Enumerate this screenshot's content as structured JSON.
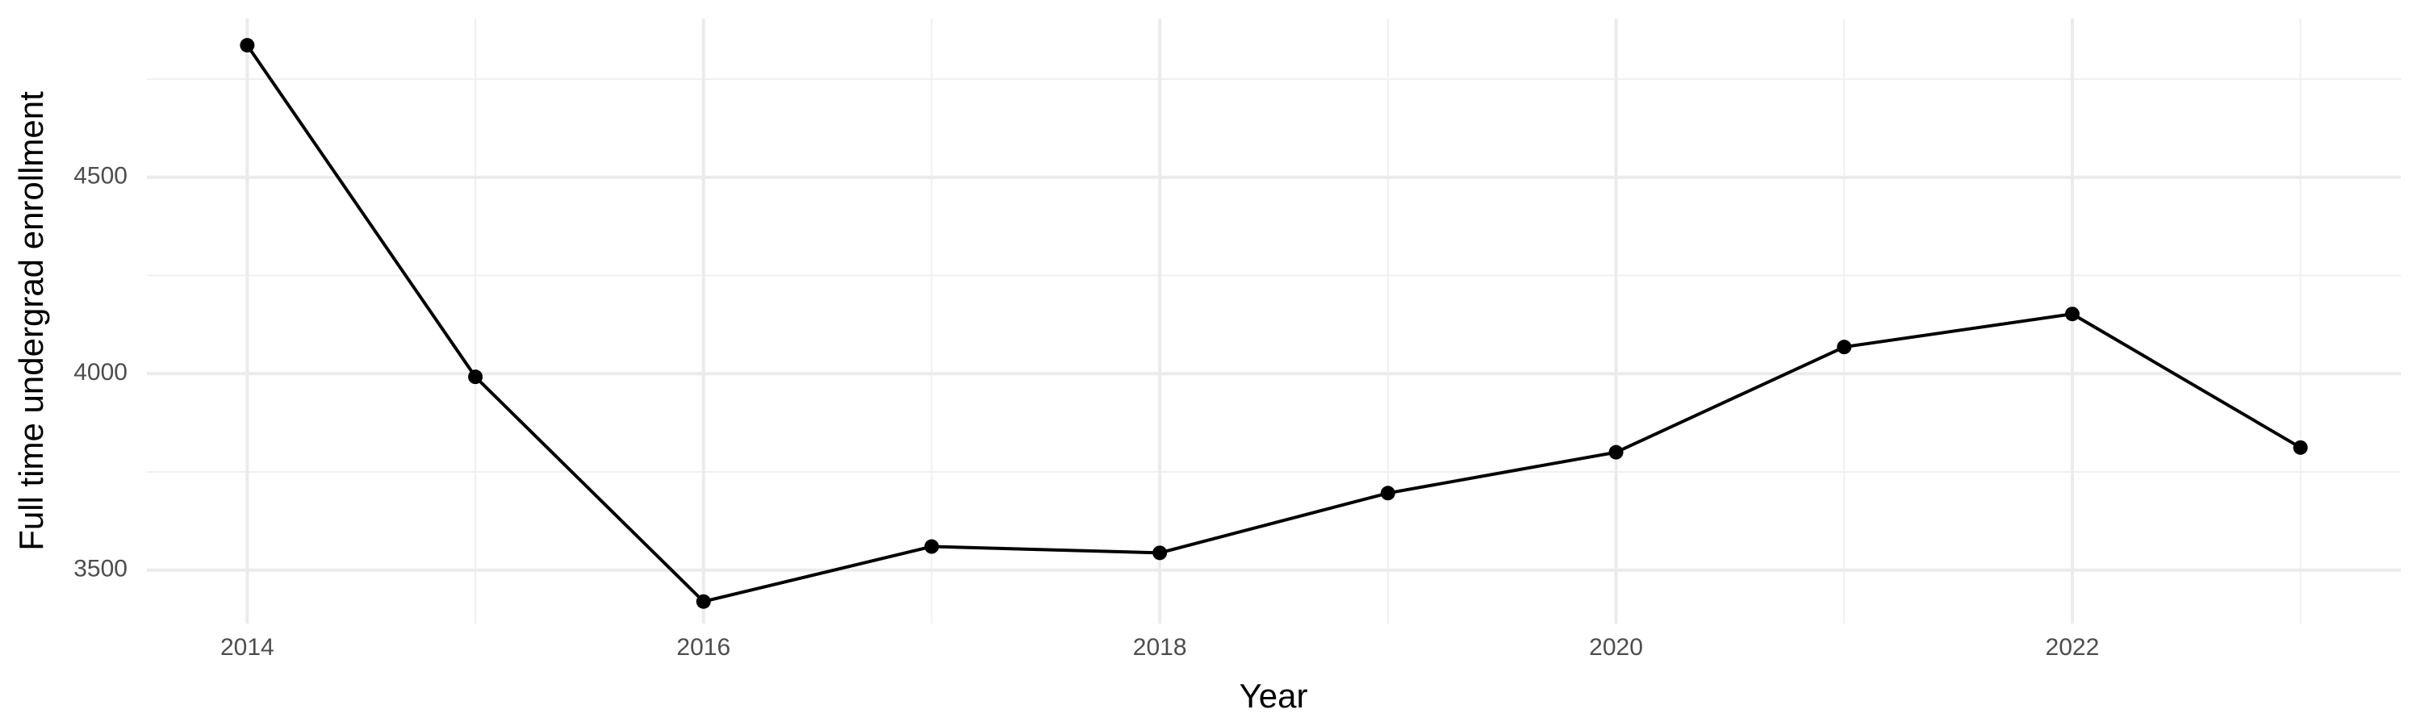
{
  "chart_data": {
    "type": "line",
    "x_label": "Year",
    "y_label": "Full time undergrad enrollment",
    "x": [
      2014,
      2015,
      2016,
      2017,
      2018,
      2019,
      2020,
      2021,
      2022,
      2023
    ],
    "series": [
      {
        "color": "#000000",
        "values": [
          4836,
          3992,
          3420,
          3560,
          3544,
          3696,
          3800,
          4068,
          4152,
          3812
        ]
      }
    ],
    "xlim": [
      2013.56,
      2023.44
    ],
    "ylim": [
      3364,
      4904
    ],
    "xticks": [
      2014,
      2016,
      2018,
      2020,
      2022
    ],
    "yticks": [
      3500,
      4000,
      4500
    ],
    "xminor": [
      2015,
      2017,
      2019,
      2021,
      2023
    ],
    "yminor": [
      3750,
      4250,
      4750
    ],
    "grid": true
  }
}
